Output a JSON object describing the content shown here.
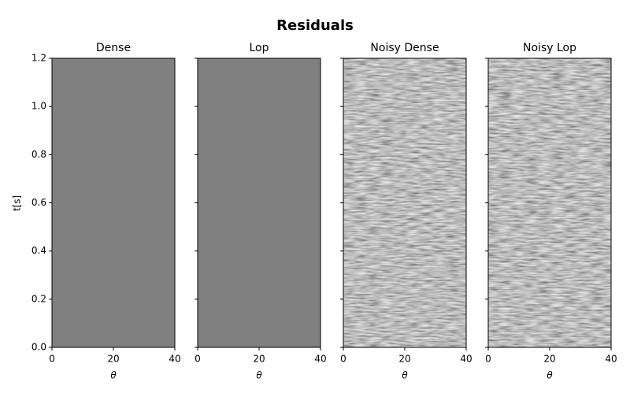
{
  "title": "Residuals",
  "chart_data": [
    {
      "type": "image",
      "title": "Dense",
      "xlabel": "θ",
      "ylabel": "t[s]",
      "cmap": "gray",
      "texture": "flat",
      "xlim": [
        0,
        40
      ],
      "xticks": [
        0,
        20,
        40
      ],
      "ylim": [
        1.2,
        0
      ],
      "yticks": [
        {
          "value": 0,
          "label": "0.0"
        },
        0.2,
        0.4,
        0.6,
        0.8,
        {
          "value": 1,
          "label": "1.0"
        },
        1.2
      ]
    },
    {
      "type": "image",
      "title": "Lop",
      "xlabel": "θ",
      "cmap": "gray",
      "texture": "flat",
      "xlim": [
        0,
        40
      ],
      "xticks": [
        0,
        20,
        40
      ]
    },
    {
      "type": "image",
      "title": "Noisy Dense",
      "xlabel": "θ",
      "cmap": "gray",
      "texture": "noise",
      "xlim": [
        0,
        40
      ],
      "xticks": [
        0,
        20,
        40
      ]
    },
    {
      "type": "image",
      "title": "Noisy Lop",
      "xlabel": "θ",
      "cmap": "gray",
      "texture": "noise",
      "xlim": [
        0,
        40
      ],
      "xticks": [
        0,
        20,
        40
      ]
    }
  ]
}
